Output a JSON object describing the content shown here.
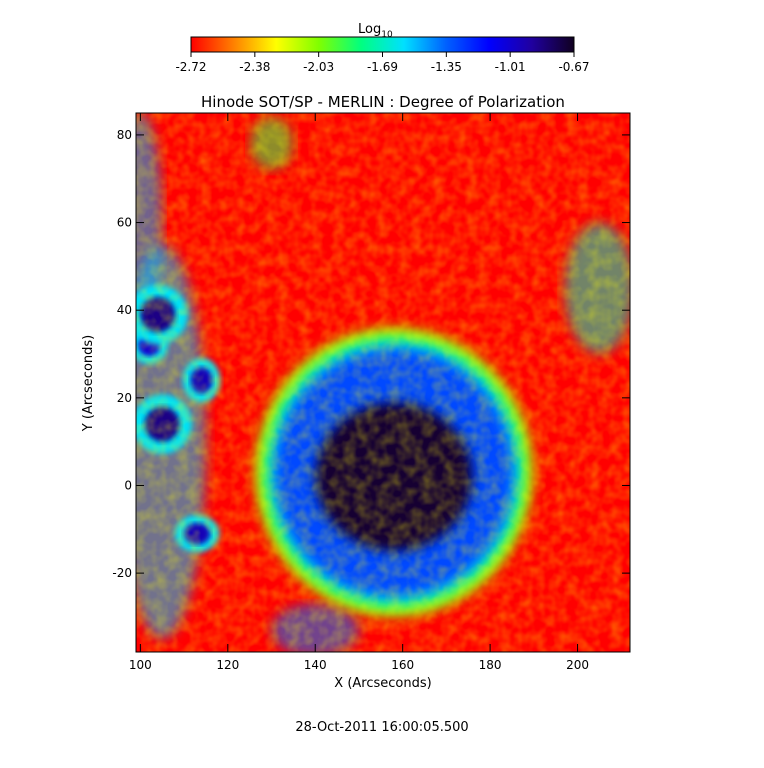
{
  "chart_data": {
    "type": "heatmap",
    "title": "Hinode SOT/SP - MERLIN : Degree of Polarization",
    "xlabel": "X (Arcseconds)",
    "ylabel": "Y (Arcseconds)",
    "xlim": [
      99,
      212
    ],
    "ylim": [
      -38,
      85
    ],
    "xticks": [
      100,
      120,
      140,
      160,
      180,
      200
    ],
    "yticks": [
      -20,
      0,
      20,
      40,
      60,
      80
    ],
    "colorbar": {
      "label_base": "Log",
      "label_sub": "10",
      "range": [
        -2.72,
        -0.67
      ],
      "ticks": [
        "-2.72",
        "-2.38",
        "-2.03",
        "-1.69",
        "-1.35",
        "-1.01",
        "-0.67"
      ],
      "colors": [
        "#ff0000",
        "#ff8000",
        "#ffff00",
        "#80ff00",
        "#00ff80",
        "#00e0ff",
        "#0060ff",
        "#0000ff",
        "#2000a0",
        "#100020"
      ]
    },
    "features": [
      {
        "name": "sunspot umbra",
        "x": 158,
        "y": 2,
        "rx": 18,
        "ry": 17,
        "value": -0.7
      },
      {
        "name": "penumbra",
        "x": 158,
        "y": 3,
        "rx": 27,
        "ry": 28,
        "value": -1.25
      },
      {
        "name": "pore",
        "x": 104,
        "y": 39,
        "rx": 4,
        "ry": 4,
        "value": -0.85
      },
      {
        "name": "pore",
        "x": 105,
        "y": 14,
        "rx": 4,
        "ry": 4,
        "value": -0.85
      },
      {
        "name": "pore",
        "x": 114,
        "y": 24,
        "rx": 2.5,
        "ry": 3,
        "value": -0.95
      },
      {
        "name": "pore",
        "x": 113,
        "y": -11,
        "rx": 3,
        "ry": 2.5,
        "value": -0.95
      },
      {
        "name": "pore",
        "x": 102,
        "y": 32,
        "rx": 2.5,
        "ry": 2.5,
        "value": -1.0
      },
      {
        "name": "network",
        "x": 100,
        "y": 60,
        "rx": 5,
        "ry": 25,
        "value": -1.5
      },
      {
        "name": "network",
        "x": 105,
        "y": 10,
        "rx": 10,
        "ry": 45,
        "value": -1.55
      },
      {
        "name": "network",
        "x": 140,
        "y": -33,
        "rx": 10,
        "ry": 6,
        "value": -1.4
      },
      {
        "name": "network",
        "x": 205,
        "y": 45,
        "rx": 8,
        "ry": 15,
        "value": -1.7
      },
      {
        "name": "network",
        "x": 130,
        "y": 78,
        "rx": 5,
        "ry": 6,
        "value": -1.9
      }
    ]
  },
  "footer": {
    "timestamp": "28-Oct-2011 16:00:05.500"
  }
}
